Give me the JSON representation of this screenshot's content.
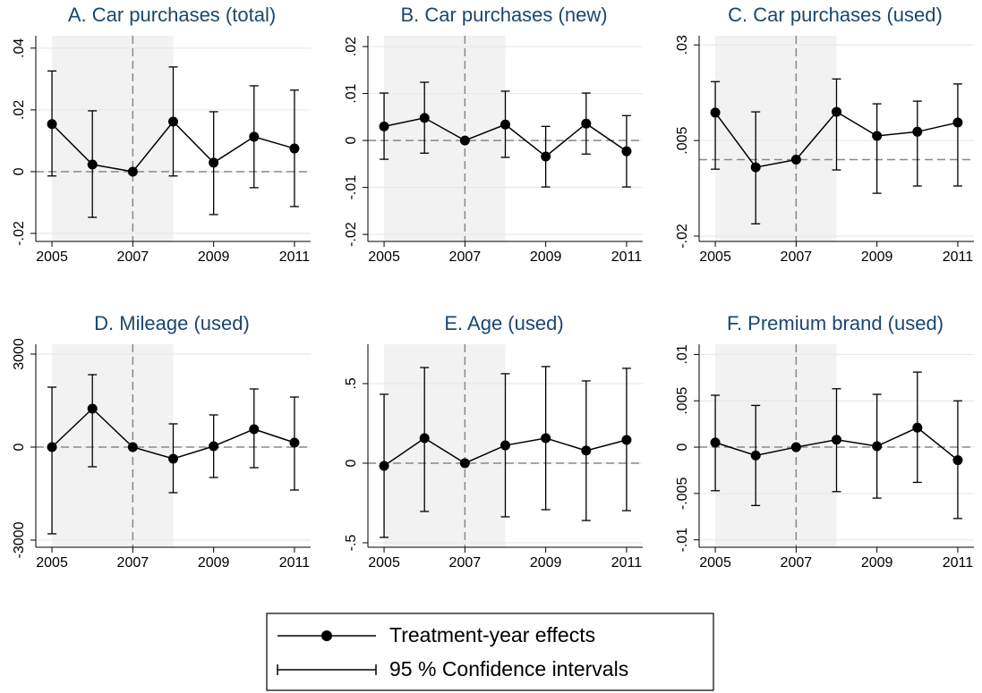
{
  "chart_data": [
    {
      "type": "line",
      "title": "A. Car purchases (total)",
      "x": [
        2005,
        2006,
        2007,
        2008,
        2009,
        2010,
        2011
      ],
      "values": [
        0.0154,
        0.0023,
        0,
        0.0162,
        0.0029,
        0.0113,
        0.0075
      ],
      "ci_lower": [
        -0.0014,
        -0.0148,
        null,
        -0.0014,
        -0.0139,
        -0.0052,
        -0.0113
      ],
      "ci_upper": [
        0.0326,
        0.0197,
        null,
        0.0339,
        0.0194,
        0.0278,
        0.0264
      ],
      "xlim": [
        2004.6,
        2011.4
      ],
      "xticks": [
        2005,
        2007,
        2009,
        2011
      ],
      "ylim": [
        -0.0226,
        0.044
      ],
      "yticks": [
        {
          "value": -0.02,
          "label": "-.02"
        },
        0,
        {
          "value": 0.02,
          "label": ".02"
        },
        {
          "value": 0.04,
          "label": ".04"
        }
      ],
      "shade": [
        2005,
        2008
      ],
      "ref_x": 2007,
      "ref_y": 0,
      "grid": true
    },
    {
      "type": "line",
      "title": "B. Car purchases (new)",
      "x": [
        2005,
        2006,
        2007,
        2008,
        2009,
        2010,
        2011
      ],
      "values": [
        0.003,
        0.0048,
        0,
        0.0034,
        -0.0034,
        0.0036,
        -0.0023
      ],
      "ci_lower": [
        -0.004,
        -0.0027,
        null,
        -0.0036,
        -0.0099,
        -0.0029,
        -0.0099
      ],
      "ci_upper": [
        0.0101,
        0.0124,
        null,
        0.0105,
        0.003,
        0.0101,
        0.0053
      ],
      "xlim": [
        2004.6,
        2011.4
      ],
      "xticks": [
        2005,
        2007,
        2009,
        2011
      ],
      "ylim": [
        -0.0215,
        0.0223
      ],
      "yticks": [
        {
          "value": -0.02,
          "label": "-.02"
        },
        {
          "value": -0.01,
          "label": "-.01"
        },
        0,
        {
          "value": 0.01,
          "label": ".01"
        },
        {
          "value": 0.02,
          "label": ".02"
        }
      ],
      "shade": [
        2005,
        2008
      ],
      "ref_x": 2007,
      "ref_y": 0,
      "grid": true
    },
    {
      "type": "line",
      "title": "C. Car purchases (used)",
      "x": [
        2005,
        2006,
        2007,
        2008,
        2009,
        2010,
        2011
      ],
      "values": [
        0.0123,
        -0.002,
        0,
        0.0125,
        0.0062,
        0.0073,
        0.0097
      ],
      "ci_lower": [
        -0.0025,
        -0.0168,
        null,
        -0.0027,
        -0.0088,
        -0.0069,
        -0.0069
      ],
      "ci_upper": [
        0.0204,
        0.0125,
        null,
        0.0211,
        0.0146,
        0.0153,
        0.0198
      ],
      "xlim": [
        2004.6,
        2011.4
      ],
      "xticks": [
        2005,
        2007,
        2009,
        2011
      ],
      "ylim": [
        -0.0214,
        0.0324
      ],
      "yticks": [
        {
          "value": -0.02,
          "label": "-.02"
        },
        {
          "value": 0.005,
          "label": ".005"
        },
        {
          "value": 0.03,
          "label": ".03"
        }
      ],
      "shade": [
        2005,
        2008
      ],
      "ref_x": 2007,
      "ref_y": 0,
      "grid": true
    },
    {
      "type": "line",
      "title": "D. Mileage (used)",
      "x": [
        2005,
        2006,
        2007,
        2008,
        2009,
        2010,
        2011
      ],
      "values": [
        0,
        1240,
        0,
        -375,
        29,
        577,
        144
      ],
      "ci_lower": [
        -2798,
        -635,
        null,
        -1471,
        -981,
        -664,
        -1385
      ],
      "ci_upper": [
        1933,
        2336,
        null,
        750,
        1038,
        1875,
        1615
      ],
      "xlim": [
        2004.6,
        2011.4
      ],
      "xticks": [
        2005,
        2007,
        2009,
        2011
      ],
      "ylim": [
        -3231,
        3317
      ],
      "yticks": [
        -3000,
        0,
        3000
      ],
      "shade": [
        2005,
        2008
      ],
      "ref_x": 2007,
      "ref_y": 0,
      "grid": true
    },
    {
      "type": "line",
      "title": "E. Age (used)",
      "x": [
        2005,
        2006,
        2007,
        2008,
        2009,
        2010,
        2011
      ],
      "values": [
        -0.017,
        0.157,
        0,
        0.112,
        0.157,
        0.079,
        0.146
      ],
      "ci_lower": [
        -0.466,
        -0.303,
        null,
        -0.337,
        -0.292,
        -0.36,
        -0.298
      ],
      "ci_upper": [
        0.433,
        0.601,
        null,
        0.562,
        0.607,
        0.517,
        0.596
      ],
      "xlim": [
        2004.6,
        2011.4
      ],
      "xticks": [
        2005,
        2007,
        2009,
        2011
      ],
      "ylim": [
        -0.528,
        0.747
      ],
      "yticks": [
        {
          "value": -0.5,
          "label": "-.5"
        },
        0,
        {
          "value": 0.5,
          "label": ".5"
        }
      ],
      "shade": [
        2005,
        2008
      ],
      "ref_x": 2007,
      "ref_y": 0,
      "grid": true
    },
    {
      "type": "line",
      "title": "F. Premium brand (used)",
      "x": [
        2005,
        2006,
        2007,
        2008,
        2009,
        2010,
        2011
      ],
      "values": [
        0.0005,
        -0.0009,
        0,
        0.0008,
        0.0001,
        0.0021,
        -0.0014
      ],
      "ci_lower": [
        -0.0047,
        -0.0063,
        null,
        -0.0048,
        -0.0055,
        -0.0038,
        -0.0077
      ],
      "ci_upper": [
        0.0056,
        0.0045,
        null,
        0.0063,
        0.0057,
        0.0081,
        0.005
      ],
      "xlim": [
        2004.6,
        2011.4
      ],
      "xticks": [
        2005,
        2007,
        2009,
        2011
      ],
      "ylim": [
        -0.0108,
        0.0111
      ],
      "yticks": [
        {
          "value": -0.01,
          "label": "-.01"
        },
        {
          "value": -0.005,
          "label": "-.005"
        },
        0,
        {
          "value": 0.005,
          "label": ".005"
        },
        {
          "value": 0.01,
          "label": ".01"
        }
      ],
      "shade": [
        2005,
        2008
      ],
      "ref_x": 2007,
      "ref_y": 0,
      "grid": true
    }
  ],
  "legend": [
    "Treatment-year effects",
    "95 % Confidence intervals"
  ]
}
